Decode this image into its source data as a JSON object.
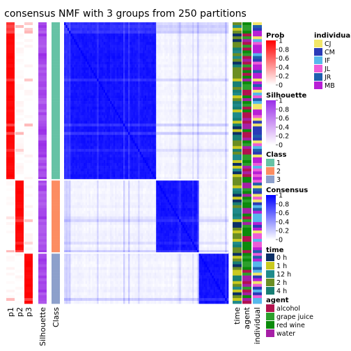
{
  "chart_data": {
    "type": "heatmap",
    "title": "consensus NMF with 3 groups from 250 partitions",
    "n_samples": 100,
    "class_sizes": [
      56,
      26,
      18
    ],
    "left_annotations": [
      "p1",
      "p2",
      "p3",
      "Silhouette",
      "Class"
    ],
    "right_annotations": [
      "time",
      "agent",
      "individual"
    ],
    "legends": {
      "prob": {
        "title": "Prob",
        "ticks": [
          "1",
          "0.8",
          "0.6",
          "0.4",
          "0.2",
          "0"
        ],
        "color_low": "#ffffff",
        "color_high": "#ff0000"
      },
      "silhouette": {
        "title": "Silhouette",
        "ticks": [
          "1",
          "0.8",
          "0.6",
          "0.4",
          "0.2",
          "0"
        ],
        "color_low": "#ffffff",
        "color_high": "#9a2ee8"
      },
      "class": {
        "title": "Class",
        "levels": [
          "1",
          "2",
          "3"
        ],
        "colors": [
          "#66c2a5",
          "#fc8d62",
          "#8da0cb"
        ]
      },
      "consensus": {
        "title": "Consensus",
        "ticks": [
          "1",
          "0.8",
          "0.6",
          "0.4",
          "0.2",
          "0"
        ],
        "color_low": "#ffffff",
        "color_high": "#0000ff"
      },
      "time": {
        "title": "time",
        "levels": [
          "0 h",
          "1 h",
          "12 h",
          "2 h",
          "4 h"
        ],
        "colors": [
          "#0b2f66",
          "#c9c91f",
          "#1f8a8a",
          "#6b8e23",
          "#177e74"
        ]
      },
      "agent": {
        "title": "agent",
        "levels": [
          "alcohol",
          "grape juice",
          "red wine",
          "water"
        ],
        "colors": [
          "#b2124f",
          "#2ca02c",
          "#0b8a0b",
          "#a61fa6"
        ]
      },
      "individual": {
        "title": "individual",
        "levels": [
          "CJ",
          "CM",
          "IF",
          "JL",
          "JR",
          "MB"
        ],
        "colors": [
          "#f2e66a",
          "#2a3ab8",
          "#56b8ec",
          "#ee5cd8",
          "#1f5fae",
          "#b81fd6"
        ]
      }
    }
  }
}
